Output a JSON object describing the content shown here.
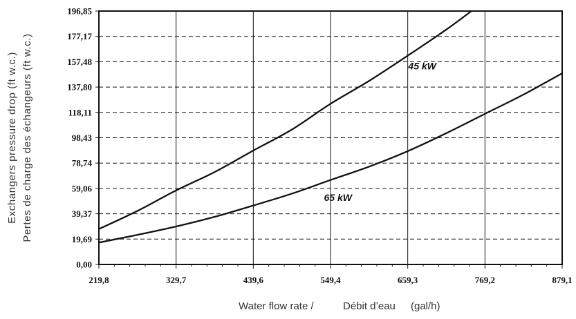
{
  "chart_data": {
    "type": "line",
    "title": "",
    "xlabel": {
      "en": "Water flow rate /",
      "fr": "Débit d’eau",
      "unit": "(gal/h)"
    },
    "ylabel": {
      "en": "Exchangers pressure drop (ft w.c.)",
      "fr": "Pertes de charge des échangeurs (ft w.c.)"
    },
    "xlim": [
      219.8,
      879.1
    ],
    "ylim": [
      0,
      196.85
    ],
    "x_ticks": [
      "219,8",
      "329,7",
      "439,6",
      "549,4",
      "659,3",
      "769,2",
      "879,1"
    ],
    "y_ticks": [
      "0,00",
      "19,69",
      "39,37",
      "59,06",
      "78,74",
      "98,43",
      "118,11",
      "137,80",
      "157,48",
      "177,17",
      "196,85"
    ],
    "grid": {
      "vertical": "solid",
      "horizontal": "dashed"
    },
    "series": [
      {
        "name": "45 kW",
        "x": [
          219.8,
          274.7,
          329.7,
          384.6,
          439.6,
          494.5,
          549.4,
          604.4,
          659.3,
          714.3,
          750.0
        ],
        "y": [
          27.5,
          41.6,
          57.5,
          71.8,
          88.5,
          104.8,
          124.8,
          142.6,
          162.2,
          182.5,
          196.85
        ]
      },
      {
        "name": "65 kW",
        "x": [
          219.8,
          274.7,
          329.7,
          384.6,
          439.6,
          494.5,
          549.4,
          604.4,
          659.3,
          714.3,
          769.2,
          824.2,
          879.1
        ],
        "y": [
          17.0,
          23.0,
          29.5,
          37.0,
          45.8,
          55.0,
          65.6,
          76.0,
          88.0,
          102.0,
          117.0,
          132.0,
          148.5
        ]
      }
    ],
    "series_label_x": [
      680,
      560
    ]
  },
  "colors": {
    "line": "#111111",
    "grid": "#111111",
    "text": "#111111",
    "axis_label": "#333333",
    "background": "#ffffff"
  }
}
